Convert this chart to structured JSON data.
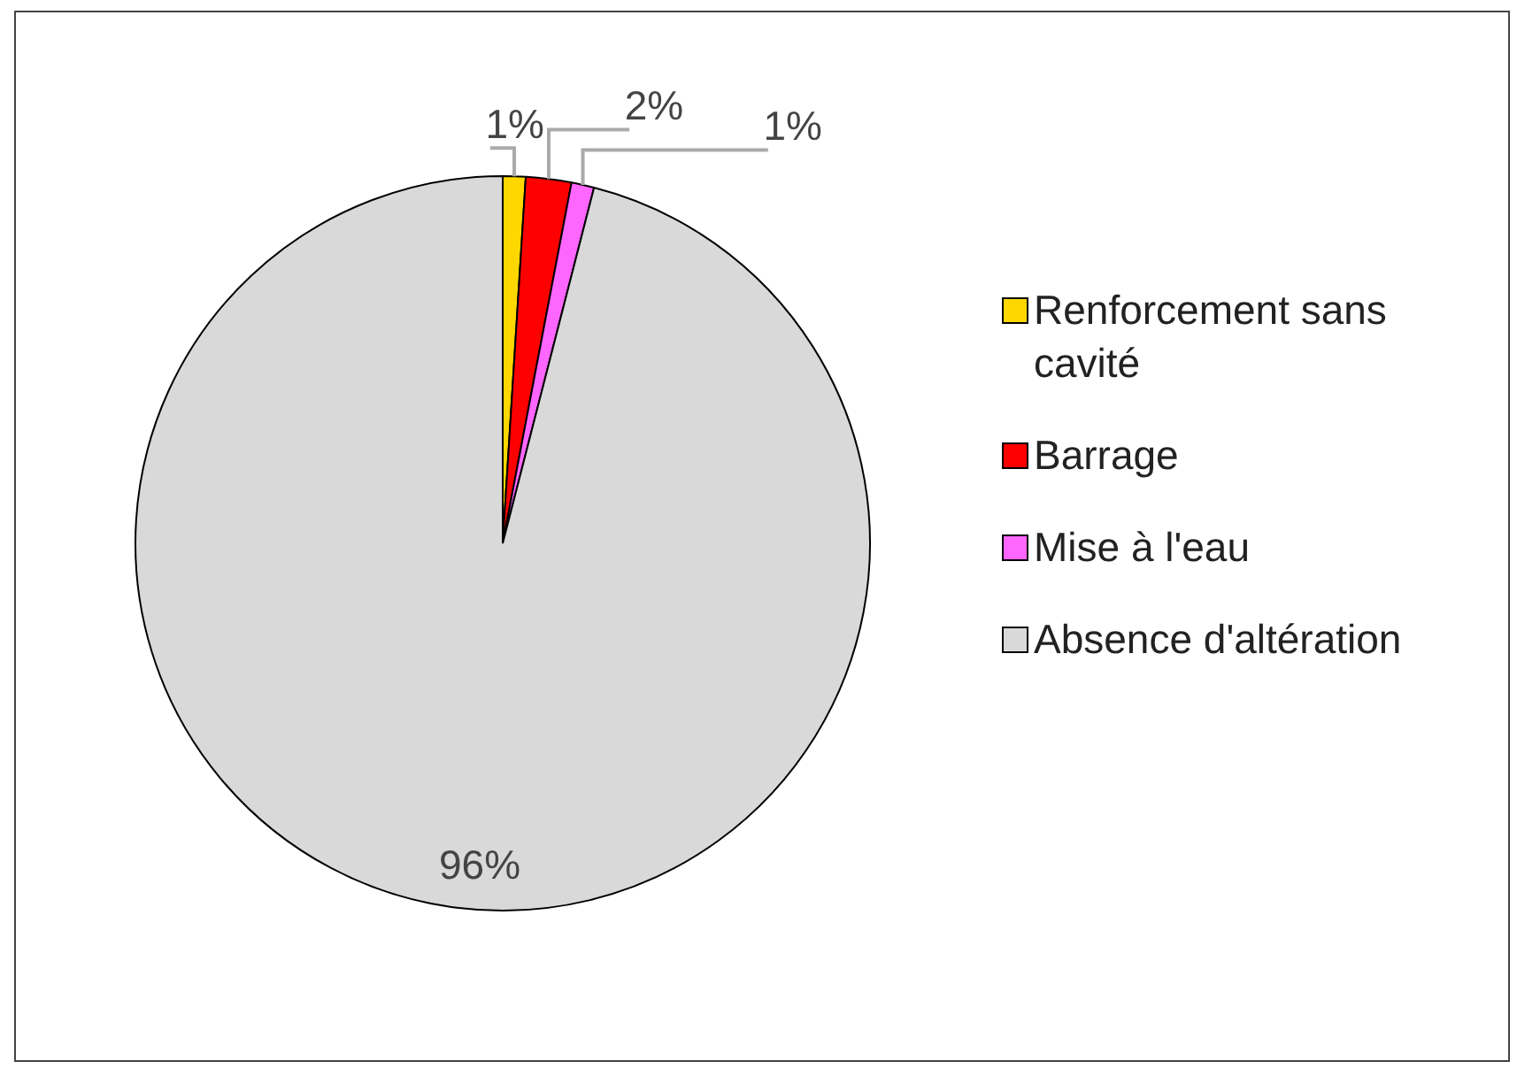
{
  "chart_data": {
    "type": "pie",
    "categories": [
      "Renforcement sans cavité",
      "Barrage",
      "Mise à l'eau",
      "Absence d'altération"
    ],
    "values": [
      1,
      2,
      1,
      96
    ],
    "colors": [
      "#ffd700",
      "#ff0000",
      "#ff66ff",
      "#d9d9d9"
    ],
    "value_labels": [
      "1%",
      "2%",
      "1%",
      "96%"
    ],
    "legend": "right"
  }
}
